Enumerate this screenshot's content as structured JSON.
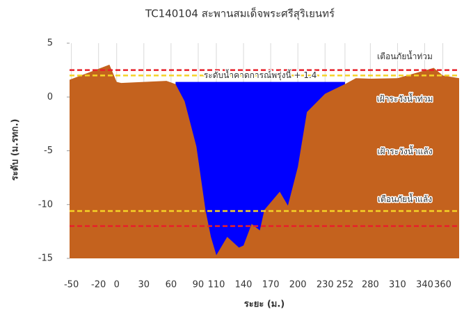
{
  "chart_data": {
    "type": "area",
    "title": "TC140104 สะพานสมเด็จพระศรีสุริเยนทร์",
    "xlabel": "ระยะ (ม.)",
    "ylabel": "ระดับ (ม.รทก.)",
    "xlim": [
      -52,
      378
    ],
    "ylim": [
      -15,
      5
    ],
    "xticks": [
      -50,
      -20,
      0,
      30,
      60,
      90,
      110,
      140,
      170,
      200,
      230,
      252,
      280,
      310,
      340,
      360
    ],
    "yticks": [
      -15,
      -10,
      -5,
      0,
      5
    ],
    "grid": true,
    "series": [
      {
        "color": "#0000ff",
        "x": [
          65,
          252
        ],
        "values": [
          1.4,
          1.4
        ]
      },
      {
        "color": "#c4621e",
        "x": [
          -52,
          -8,
          0,
          5,
          30,
          55,
          65,
          75,
          88,
          98,
          104,
          110,
          122,
          135,
          140,
          149,
          158,
          163,
          180,
          189,
          200,
          210,
          230,
          252,
          264,
          280,
          310,
          350,
          360,
          378
        ],
        "values": [
          1.6,
          3.0,
          1.4,
          1.3,
          1.4,
          1.5,
          1.2,
          -0.4,
          -4.6,
          -10.5,
          -13,
          -14.7,
          -13,
          -14,
          -13.8,
          -11.8,
          -12.4,
          -10.5,
          -8.8,
          -10.1,
          -6.5,
          -1.4,
          0.3,
          1.2,
          1.75,
          1.7,
          1.75,
          2.7,
          2.0,
          1.75
        ]
      }
    ],
    "lines": [
      {
        "value": 2.5,
        "color": "#e8202a",
        "label": "เตือนภัยน้ำท่วม"
      },
      {
        "value": 2.0,
        "color": "#f5d327",
        "label": "เฝ้าระวังน้ำท่วม"
      },
      {
        "value": -10.6,
        "color": "#f5d327",
        "label": "เฝ้าระวังน้ำแล้ง"
      },
      {
        "value": -12,
        "color": "#e8202a",
        "label": "เตือนภัยน้ำแล้ง"
      }
    ],
    "annotation": "ระดับน้ำคาดการณ์พรุ่งนี้ + 1.4"
  }
}
